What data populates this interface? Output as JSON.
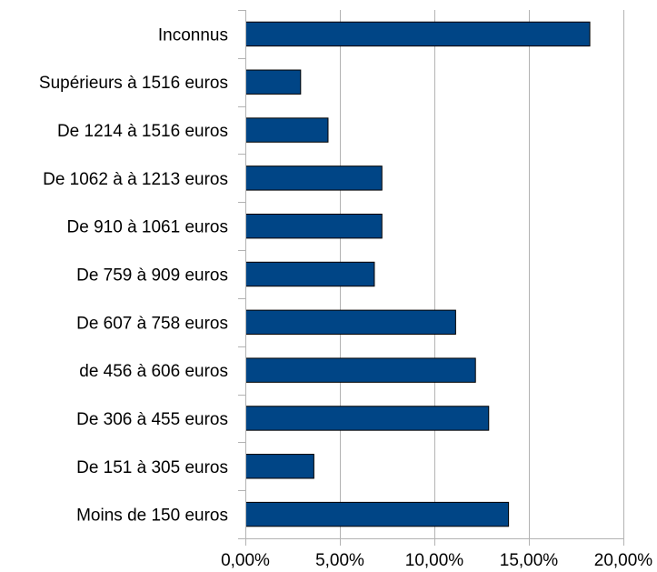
{
  "chart_data": {
    "type": "bar",
    "orientation": "horizontal",
    "categories": [
      "Inconnus",
      "Supérieurs à 1516 euros",
      "De 1214 à 1516 euros",
      "De 1062 à à 1213 euros",
      "De 910 à 1061 euros",
      "De 759 à 909 euros",
      "De 607 à 758 euros",
      "de 456 à 606 euros",
      "De 306 à 455 euros",
      "De 151 à 305 euros",
      "Moins de 150 euros"
    ],
    "values": [
      18.2,
      2.9,
      4.35,
      7.2,
      7.2,
      6.8,
      11.1,
      12.15,
      12.85,
      3.6,
      13.9
    ],
    "xlim": [
      0,
      20
    ],
    "x_ticks": [
      0,
      5,
      10,
      15,
      20
    ],
    "x_tick_labels": [
      "0,00%",
      "5,00%",
      "10,00%",
      "15,00%",
      "20,00%"
    ],
    "grid": true,
    "bar_color": "#004586",
    "title": "",
    "xlabel": "",
    "ylabel": ""
  }
}
